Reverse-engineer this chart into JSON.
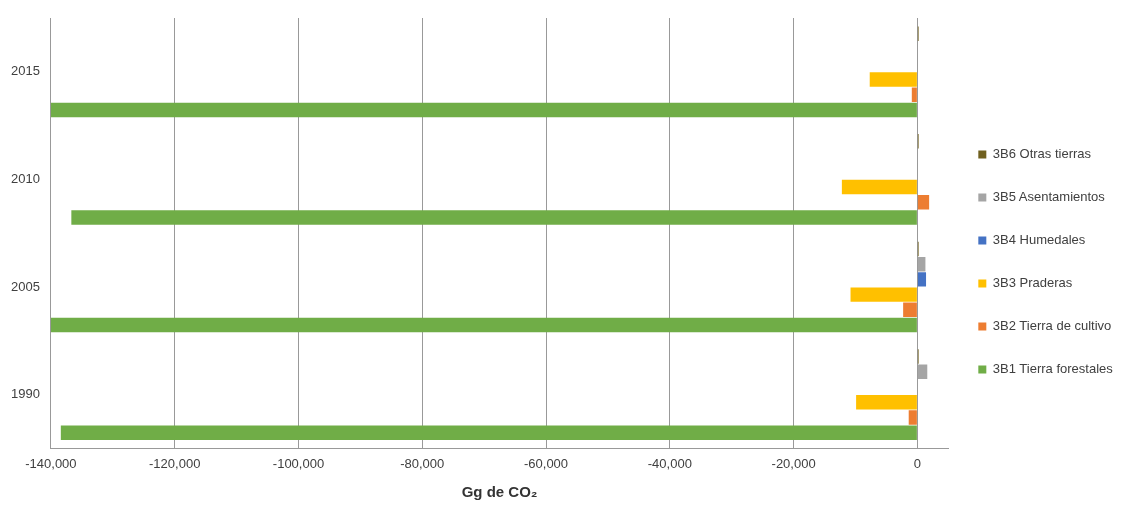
{
  "chart_data": {
    "type": "bar",
    "orientation": "horizontal",
    "xlabel": "Gg de CO₂",
    "categories": [
      "2015",
      "2010",
      "2005",
      "1990"
    ],
    "series": [
      {
        "name": "3B6 Otras tierras",
        "color": "#70601f",
        "values": [
          200,
          200,
          200,
          200
        ]
      },
      {
        "name": "3B5 Asentamientos",
        "color": "#a5a5a5",
        "values": [
          100,
          100,
          1300,
          1600
        ]
      },
      {
        "name": "3B4 Humedales",
        "color": "#4472c4",
        "values": [
          null,
          null,
          1400,
          null
        ]
      },
      {
        "name": "3B3 Praderas",
        "color": "#ffc000",
        "values": [
          -7700,
          -12200,
          -10800,
          -9900
        ]
      },
      {
        "name": "3B2 Tierra de cultivo",
        "color": "#ed7d31",
        "values": [
          -900,
          1900,
          -2300,
          -1400
        ]
      },
      {
        "name": "3B1 Tierra forestales",
        "color": "#70ad47",
        "values": [
          -140000,
          -136700,
          -140000,
          -138400
        ]
      }
    ],
    "xlim": [
      -140000,
      5000
    ],
    "xticks": [
      {
        "value": -140000,
        "label": "-140,000"
      },
      {
        "value": -120000,
        "label": "-120,000"
      },
      {
        "value": -100000,
        "label": "-100,000"
      },
      {
        "value": -80000,
        "label": "-80,000"
      },
      {
        "value": -60000,
        "label": "-60,000"
      },
      {
        "value": -40000,
        "label": "-40,000"
      },
      {
        "value": -20000,
        "label": "-20,000"
      },
      0
    ],
    "grid": "x",
    "legend": "right"
  }
}
